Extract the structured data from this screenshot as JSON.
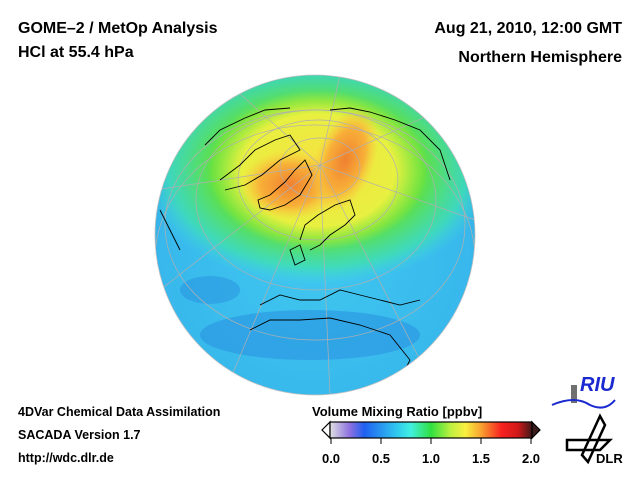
{
  "header": {
    "title_left_1": "GOME–2 / MetOp Analysis",
    "title_left_2": "HCl at 55.4 hPa",
    "title_right_1": "Aug 21, 2010, 12:00 GMT",
    "title_right_2": "Northern Hemisphere"
  },
  "footer": {
    "line1": "4DVar Chemical Data Assimilation",
    "line2": "SACADA Version 1.7",
    "line3": "http://wdc.dlr.de"
  },
  "colorbar": {
    "label": "Volume Mixing Ratio [ppbv]",
    "ticks": [
      "0.0",
      "0.5",
      "1.0",
      "1.5",
      "2.0"
    ],
    "range": [
      0.0,
      2.0
    ],
    "colors": [
      "#e0e0e0",
      "#8a6ee0",
      "#2060f0",
      "#30c8f0",
      "#40f0e0",
      "#30e040",
      "#c0f040",
      "#f8f040",
      "#f8a030",
      "#f82020",
      "#d01818",
      "#401818"
    ]
  },
  "logos": {
    "riu": "RIU",
    "dlr": "DLR"
  }
}
